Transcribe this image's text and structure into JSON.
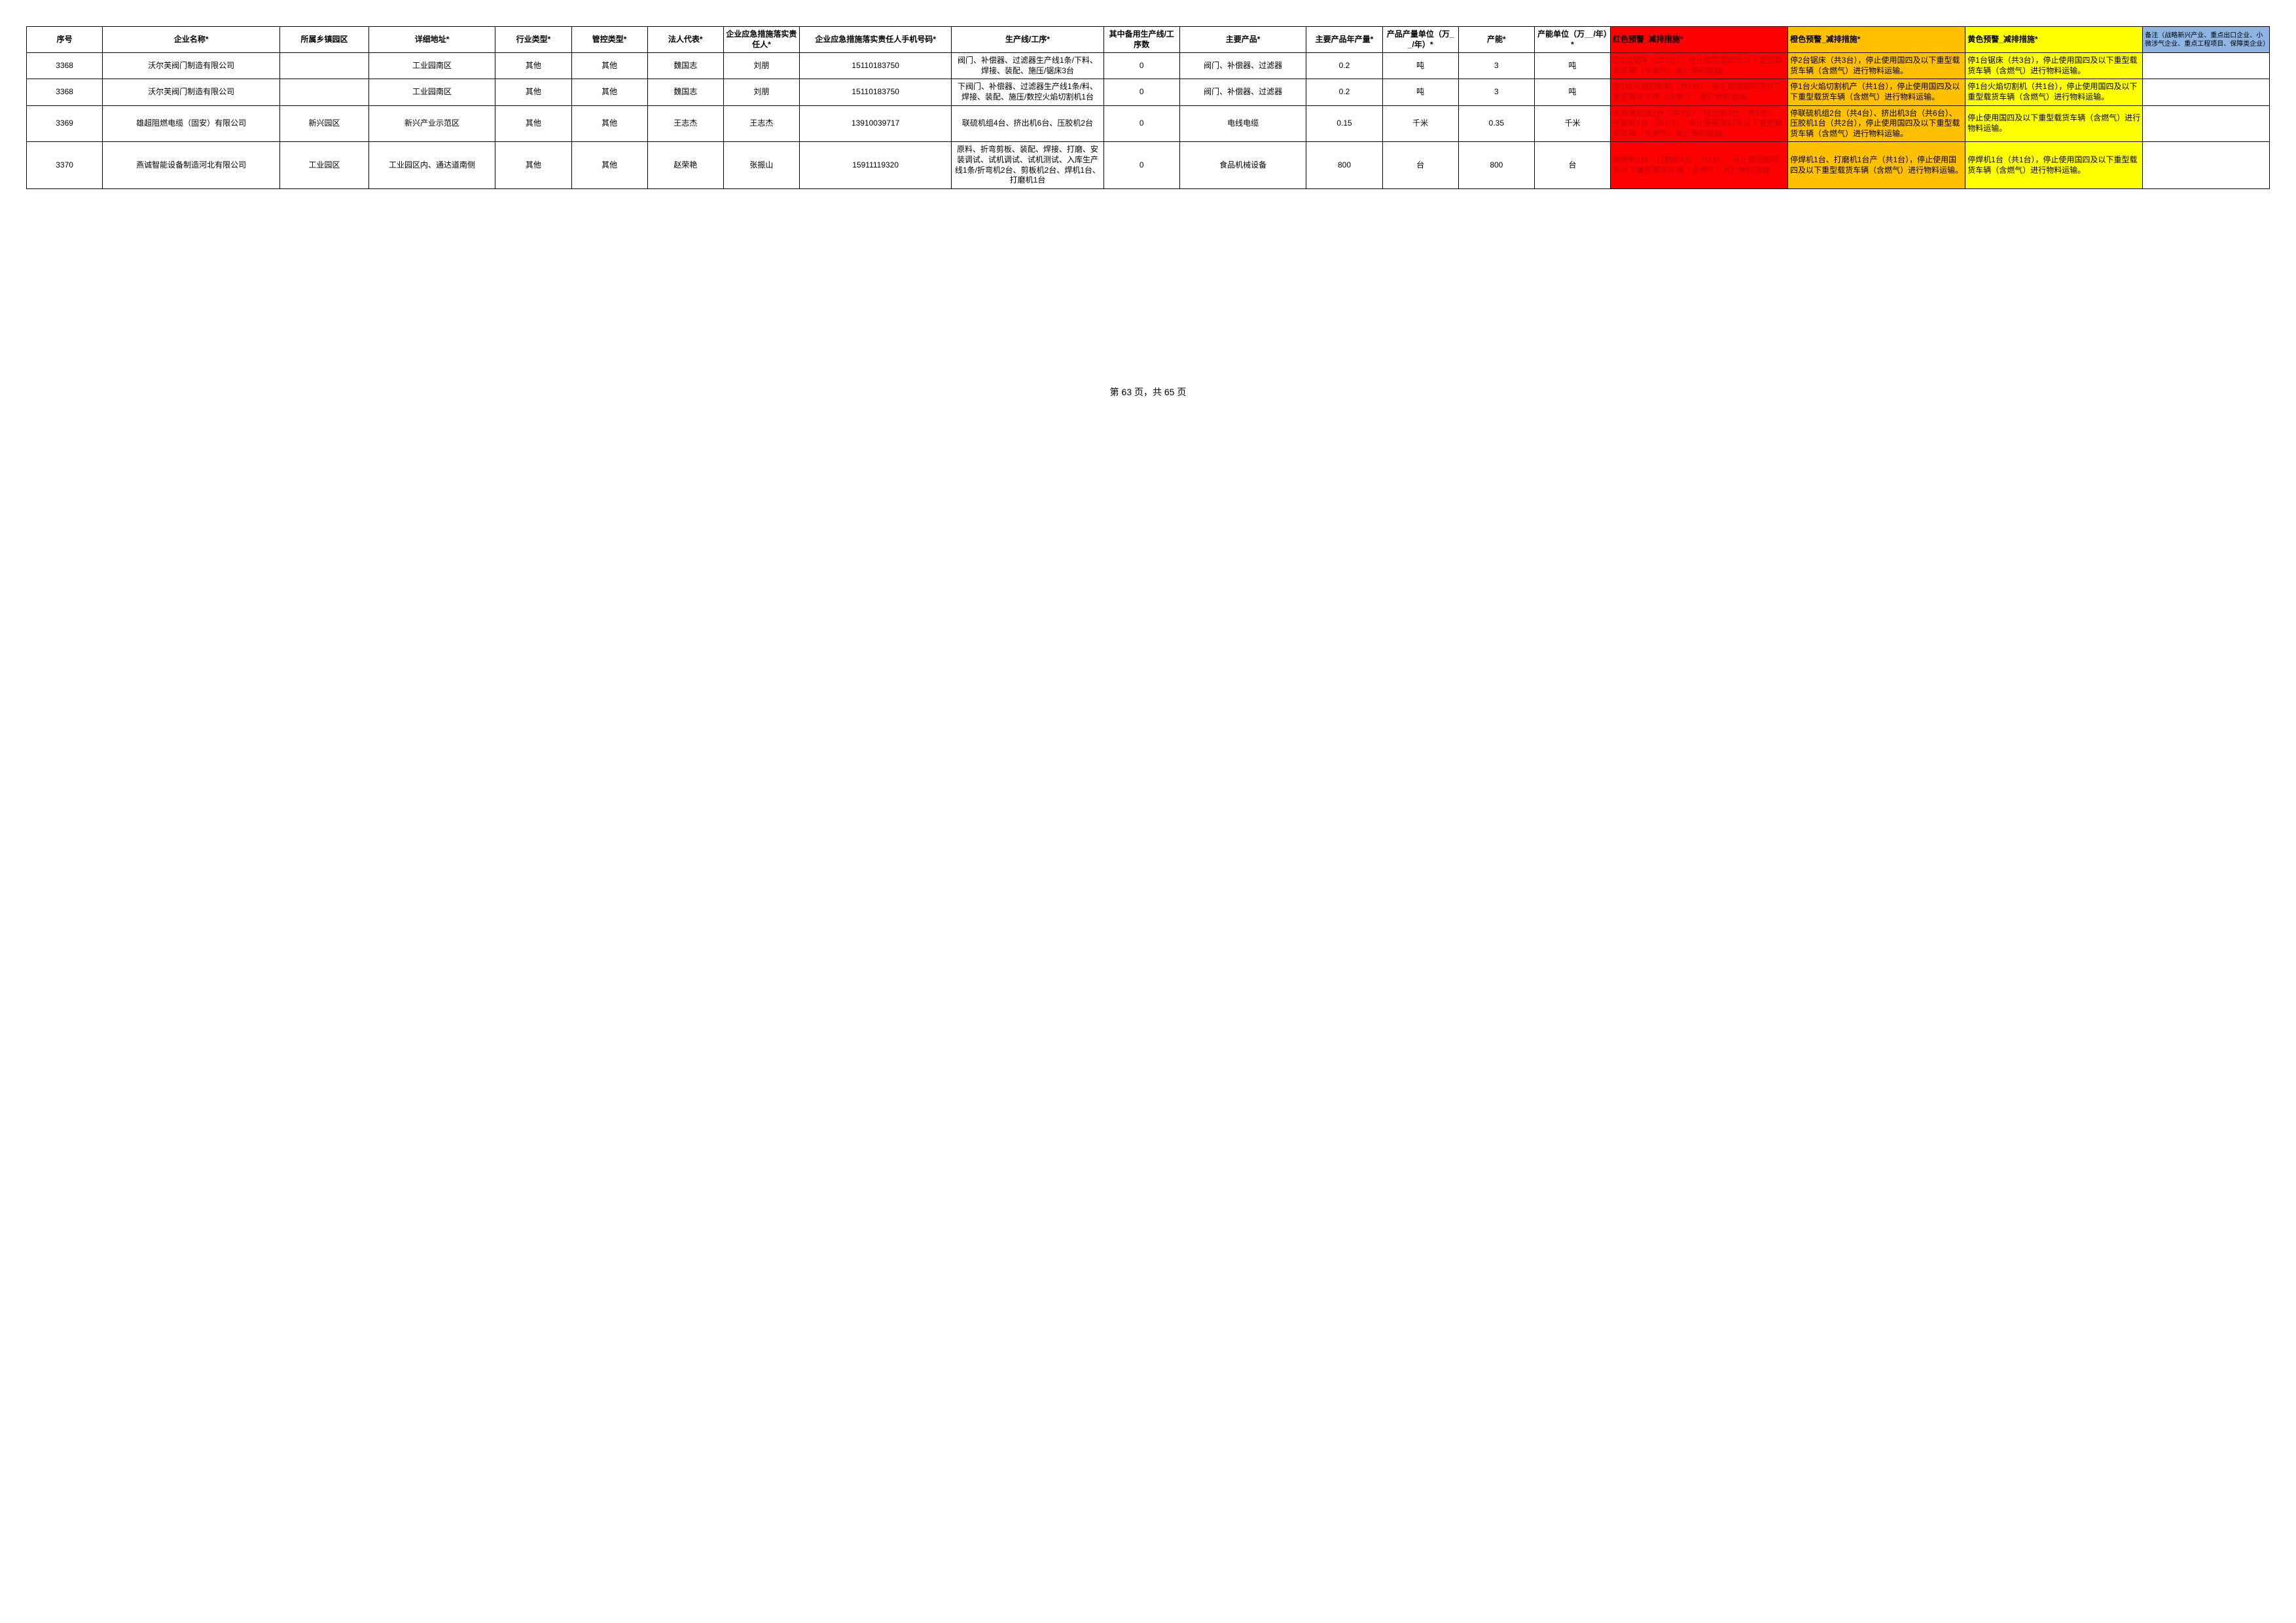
{
  "colors": {
    "red_bg": "#ff0000",
    "red_text": "#c00000",
    "orange_bg": "#ffc000",
    "yellow_bg": "#ffff00",
    "remark_header_bg": "#8db4e2",
    "border": "#000000"
  },
  "footer": "第 63 页，共 65 页",
  "headers": {
    "seq": "序号",
    "name": "企业名称*",
    "town": "所属乡镇园区",
    "addr": "详细地址*",
    "ind": "行业类型*",
    "ctrl": "管控类型*",
    "legal": "法人代表*",
    "resp": "企业应急措施落实责任人*",
    "phone": "企业应急措施落实责任人手机号码*",
    "line": "生产线/工序*",
    "backup": "其中备用生产线/工序数",
    "prod": "主要产品*",
    "pqty": "主要产品年产量*",
    "punit": "产品产量单位（万__/年）*",
    "cap": "产能*",
    "cunit": "产能单位（万__/年）*",
    "red": "红色预警_减排措施*",
    "orange": "橙色预警_减排措施*",
    "yellow": "黄色预警_减排措施*",
    "remark": "备注（战略新兴产业、重点出口企业、小微涉气企业、重点工程项目、保障类企业）"
  },
  "rows": [
    {
      "seq": "3368",
      "name": "沃尔芙阀门制造有限公司",
      "town": "",
      "addr": "工业园南区",
      "ind": "其他",
      "ctrl": "其他",
      "legal": "魏国志",
      "resp": "刘朋",
      "phone": "15110183750",
      "line": "阀门、补偿器、过滤器生产线1条/下料、焊接、装配、施压/锯床3台",
      "backup": "0",
      "prod": "阀门、补偿器、过滤器",
      "pqty": "0.2",
      "punit": "吨",
      "cap": "3",
      "cunit": "吨",
      "red": "停3台锯床（共3台），停止使用国四及以下重型载货车辆（含燃气）进行物料运输。",
      "orange": "停2台锯床（共3台），停止使用国四及以下重型载货车辆（含燃气）进行物料运输。",
      "yellow": "停1台锯床（共3台），停止使用国四及以下重型载货车辆（含燃气）进行物料运输。",
      "remark": ""
    },
    {
      "seq": "3368",
      "name": "沃尔芙阀门制造有限公司",
      "town": "",
      "addr": "工业园南区",
      "ind": "其他",
      "ctrl": "其他",
      "legal": "魏国志",
      "resp": "刘朋",
      "phone": "15110183750",
      "line": "下阀门、补偿器、过滤器生产线1条/料、焊接、装配、施压/数控火焰切割机1台",
      "backup": "0",
      "prod": "阀门、补偿器、过滤器",
      "pqty": "0.2",
      "punit": "吨",
      "cap": "3",
      "cunit": "吨",
      "red": "停1台火焰切割机（共1台），停止使用国四及以下重型载货车辆（含燃气）进行物料运输。",
      "orange": "停1台火焰切割机产（共1台），停止使用国四及以下重型载货车辆（含燃气）进行物料运输。",
      "yellow": "停1台火焰切割机（共1台），停止使用国四及以下重型载货车辆（含燃气）进行物料运输。",
      "remark": ""
    },
    {
      "seq": "3369",
      "name": "雄超阻燃电缆（固安）有限公司",
      "town": "新兴园区",
      "addr": "新兴产业示范区",
      "ind": "其他",
      "ctrl": "其他",
      "legal": "王志杰",
      "resp": "王志杰",
      "phone": "13910039717",
      "line": "联硫机组4台、挤出机6台、压胶机2台",
      "backup": "0",
      "prod": "电线电缆",
      "pqty": "0.15",
      "punit": "千米",
      "cap": "0.35",
      "cunit": "千米",
      "red": "停联硫机组2台（共4台）、挤出机3台（共6台）、压胶机1台（共2台），停止使用国四及以下重型载货车辆（含燃气）进行物料运输。",
      "orange": "停联硫机组2台（共4台）、挤出机3台（共6台）、压胶机1台（共2台），停止使用国四及以下重型载货车辆（含燃气）进行物料运输。",
      "yellow": "停止使用国四及以下重型载货车辆（含燃气）进行物料运输。",
      "remark": ""
    },
    {
      "seq": "3370",
      "name": "燕诚智能设备制造河北有限公司",
      "town": "工业园区",
      "addr": "工业园区内、通达道南侧",
      "ind": "其他",
      "ctrl": "其他",
      "legal": "赵荣艳",
      "resp": "张振山",
      "phone": "15911119320",
      "line": "原料、折弯剪板、装配、焊接、打磨、安装调试、试机调试、试机测试、入库生产线1条/折弯机2台、剪板机2台、焊机1台、打磨机1台",
      "backup": "0",
      "prod": "食品机械设备",
      "pqty": "800",
      "punit": "台",
      "cap": "800",
      "cunit": "台",
      "red": "停焊机1台、打磨机1台（共1台），停止使用国四及以下重型载货车辆（含燃气）进行物料运输。",
      "orange": "停焊机1台、打磨机1台产（共1台），停止使用国四及以下重型载货车辆（含燃气）进行物料运输。",
      "yellow": "停焊机1台（共1台），停止使用国四及以下重型载货车辆（含燃气）进行物料运输。",
      "remark": ""
    }
  ]
}
